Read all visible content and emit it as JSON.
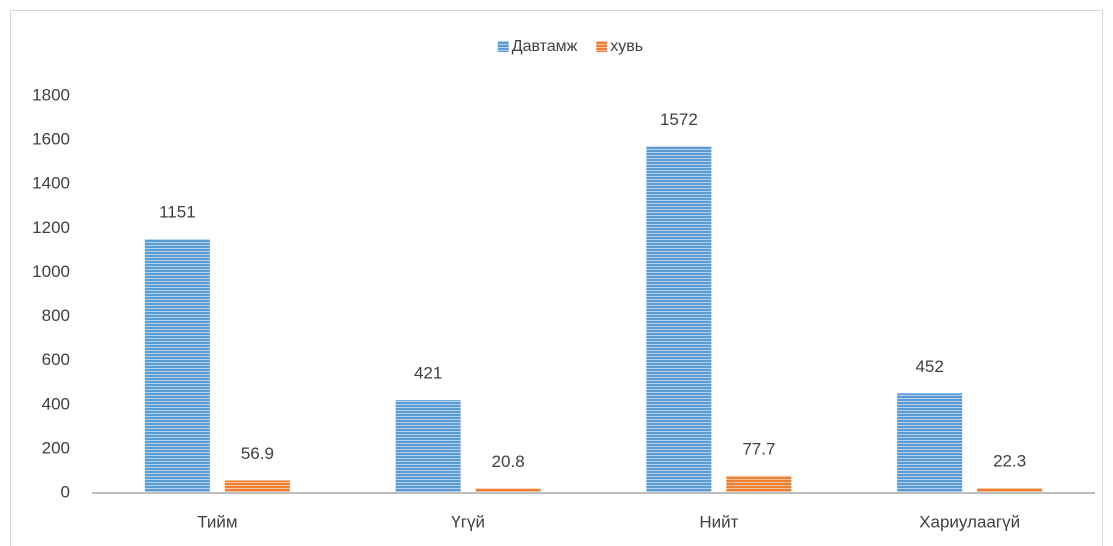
{
  "chart_data": {
    "type": "bar",
    "categories": [
      "Тийм",
      "Үгүй",
      "Нийт",
      "Хариулаагүй"
    ],
    "series": [
      {
        "name": "Давтамж",
        "color": "#5b9bd5",
        "values": [
          1151,
          421,
          1572,
          452
        ]
      },
      {
        "name": "хувь",
        "color": "#ed7d31",
        "values": [
          56.9,
          20.8,
          77.7,
          22.3
        ]
      }
    ],
    "ylim": [
      0,
      1800
    ],
    "yticks": [
      0,
      200,
      400,
      600,
      800,
      1000,
      1200,
      1400,
      1600,
      1800
    ],
    "grid": false,
    "legend": "top"
  }
}
